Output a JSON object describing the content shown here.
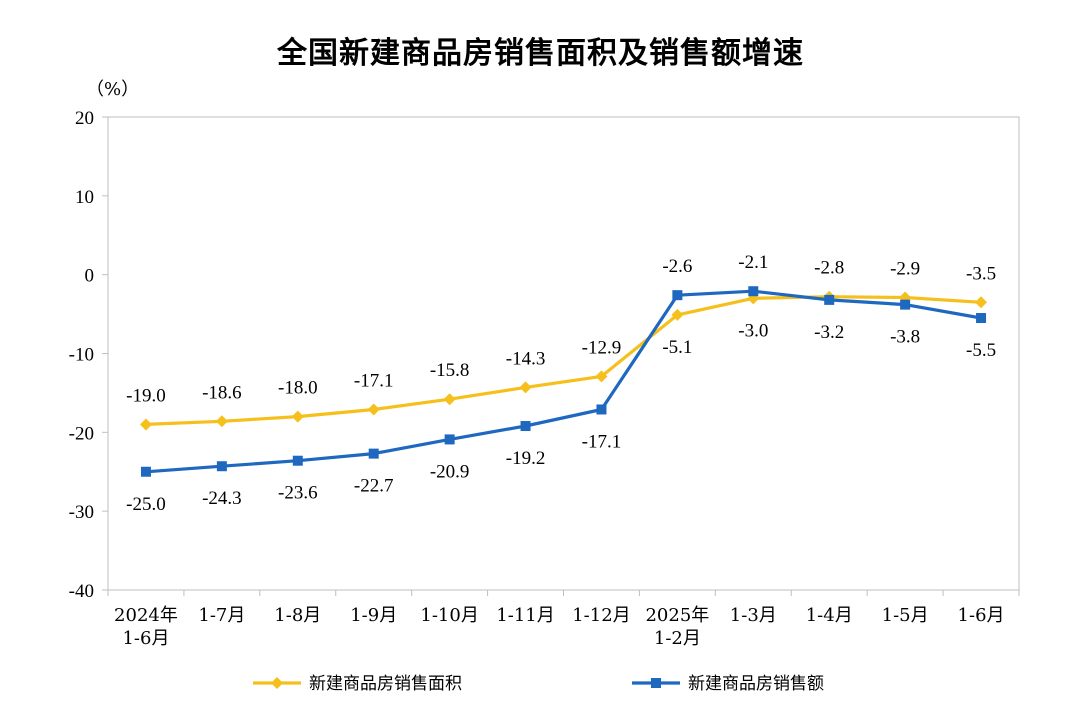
{
  "chart_data": {
    "type": "line",
    "title": "全国新建商品房销售面积及销售额增速",
    "unit_label": "（%）",
    "ylim": [
      -40,
      20
    ],
    "yticks": [
      20,
      10,
      0,
      -10,
      -20,
      -30,
      -40
    ],
    "grid": false,
    "legend_position": "bottom",
    "categories": [
      [
        "2024年",
        "1-6月"
      ],
      [
        "1-7月"
      ],
      [
        "1-8月"
      ],
      [
        "1-9月"
      ],
      [
        "1-10月"
      ],
      [
        "1-11月"
      ],
      [
        "1-12月"
      ],
      [
        "2025年",
        "1-2月"
      ],
      [
        "1-3月"
      ],
      [
        "1-4月"
      ],
      [
        "1-5月"
      ],
      [
        "1-6月"
      ]
    ],
    "series": [
      {
        "name": "新建商品房销售面积",
        "color": "#F6C01C",
        "marker": "diamond",
        "values": [
          -19.0,
          -18.6,
          -18.0,
          -17.1,
          -15.8,
          -14.3,
          -12.9,
          -5.1,
          -3.0,
          -2.8,
          -2.9,
          -3.5
        ],
        "labels": [
          "-19.0",
          "-18.6",
          "-18.0",
          "-17.1",
          "-15.8",
          "-14.3",
          "-12.9",
          "-5.1",
          "-3.0",
          "-2.8",
          "-2.9",
          "-3.5"
        ],
        "label_side": [
          "above",
          "above",
          "above",
          "above",
          "above",
          "above",
          "above",
          "below",
          "below",
          "above",
          "above",
          "above"
        ]
      },
      {
        "name": "新建商品房销售额",
        "color": "#1F68C0",
        "marker": "square",
        "values": [
          -25.0,
          -24.3,
          -23.6,
          -22.7,
          -20.9,
          -19.2,
          -17.1,
          -2.6,
          -2.1,
          -3.2,
          -3.8,
          -5.5
        ],
        "labels": [
          "-25.0",
          "-24.3",
          "-23.6",
          "-22.7",
          "-20.9",
          "-19.2",
          "-17.1",
          "-2.6",
          "-2.1",
          "-3.2",
          "-3.8",
          "-5.5"
        ],
        "label_side": [
          "below",
          "below",
          "below",
          "below",
          "below",
          "below",
          "below",
          "above",
          "above",
          "below",
          "below",
          "below"
        ]
      }
    ]
  }
}
